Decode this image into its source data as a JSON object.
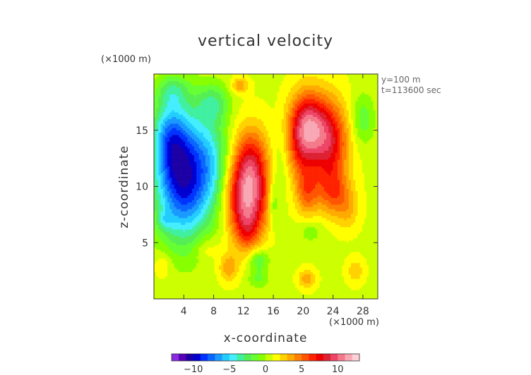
{
  "chart_data": {
    "type": "heatmap",
    "title": "vertical velocity",
    "xlabel": "x-coordinate",
    "ylabel": "z-coordinate",
    "x_unit": "(×1000 m)",
    "y_unit": "(×1000 m)",
    "annotations": [
      "y=100 m",
      "t=113600 sec"
    ],
    "xlim": [
      0,
      30
    ],
    "ylim": [
      0,
      20
    ],
    "x_ticks": [
      4,
      8,
      12,
      16,
      20,
      24,
      28
    ],
    "y_ticks": [
      5,
      10,
      15
    ],
    "colorbar": {
      "range": [
        -13,
        13
      ],
      "ticks": [
        -10,
        -5,
        0,
        5,
        10
      ],
      "colors": [
        "#8a2be2",
        "#5a00b4",
        "#1c00a6",
        "#0000d0",
        "#0033ff",
        "#0a66ff",
        "#1a99ff",
        "#22ccff",
        "#44eeff",
        "#40f0a0",
        "#55ee55",
        "#66ff33",
        "#88ff00",
        "#ccff00",
        "#ffff00",
        "#ffd200",
        "#ffaa00",
        "#ff7f00",
        "#ff5500",
        "#ff2200",
        "#ee0000",
        "#dd2233",
        "#ee4466",
        "#f47a8a",
        "#f8a8b4",
        "#ffd0d8"
      ]
    },
    "features": [
      {
        "x": 4.0,
        "z": 11.0,
        "sx": 2.6,
        "sz": 3.8,
        "w": -11
      },
      {
        "x": 2.0,
        "z": 14.5,
        "sx": 1.5,
        "sz": 2.2,
        "w": -4
      },
      {
        "x": 8.0,
        "z": 17.5,
        "sx": 1.5,
        "sz": 1.2,
        "w": -3
      },
      {
        "x": 2.5,
        "z": 18.5,
        "sx": 1.5,
        "sz": 1.0,
        "w": -2.5
      },
      {
        "x": 8.0,
        "z": 12.0,
        "sx": 1.6,
        "sz": 3.0,
        "w": -3
      },
      {
        "x": 12.5,
        "z": 9.0,
        "sx": 2.0,
        "sz": 2.4,
        "w": 9
      },
      {
        "x": 13.0,
        "z": 12.5,
        "sx": 1.6,
        "sz": 2.2,
        "w": 5
      },
      {
        "x": 12.5,
        "z": 6.0,
        "sx": 1.2,
        "sz": 1.5,
        "w": 3
      },
      {
        "x": 14.0,
        "z": 3.5,
        "sx": 1.0,
        "sz": 0.7,
        "w": -3
      },
      {
        "x": 16.0,
        "z": 8.5,
        "sx": 0.5,
        "sz": 1.5,
        "w": -2.5
      },
      {
        "x": 17.0,
        "z": 12.0,
        "sx": 0.9,
        "sz": 2.6,
        "w": -1.5
      },
      {
        "x": 20.5,
        "z": 15.5,
        "sx": 1.7,
        "sz": 2.1,
        "w": 8
      },
      {
        "x": 23.5,
        "z": 14.0,
        "sx": 1.8,
        "sz": 2.6,
        "w": 7
      },
      {
        "x": 20.5,
        "z": 9.5,
        "sx": 1.1,
        "sz": 1.5,
        "w": 4
      },
      {
        "x": 24.0,
        "z": 9.5,
        "sx": 1.5,
        "sz": 1.5,
        "w": 4
      },
      {
        "x": 19.5,
        "z": 13.0,
        "sx": 1.5,
        "sz": 2.0,
        "w": 3
      },
      {
        "x": 28.0,
        "z": 16.0,
        "sx": 1.1,
        "sz": 1.6,
        "w": -2.5
      },
      {
        "x": 26.0,
        "z": 8.0,
        "sx": 1.1,
        "sz": 1.3,
        "w": 2
      },
      {
        "x": 10.0,
        "z": 2.8,
        "sx": 0.9,
        "sz": 0.9,
        "w": 3
      },
      {
        "x": 20.5,
        "z": 1.8,
        "sx": 0.8,
        "sz": 0.6,
        "w": 3
      },
      {
        "x": 11.5,
        "z": 19.0,
        "sx": 0.8,
        "sz": 0.5,
        "w": 3
      },
      {
        "x": 14.0,
        "z": 1.8,
        "sx": 1.0,
        "sz": 0.6,
        "w": -2
      },
      {
        "x": 21.0,
        "z": 6.0,
        "sx": 1.2,
        "sz": 0.7,
        "w": -1.5
      },
      {
        "x": 27.0,
        "z": 2.5,
        "sx": 0.8,
        "sz": 0.8,
        "w": 2
      },
      {
        "x": 1.5,
        "z": 7.0,
        "sx": 0.8,
        "sz": 0.6,
        "w": -2
      },
      {
        "x": 1.2,
        "z": 3.0,
        "sx": 0.8,
        "sz": 0.8,
        "w": 1.5
      },
      {
        "x": 7.0,
        "z": 4.5,
        "sx": 1.2,
        "sz": 0.8,
        "w": 1.5
      }
    ]
  }
}
